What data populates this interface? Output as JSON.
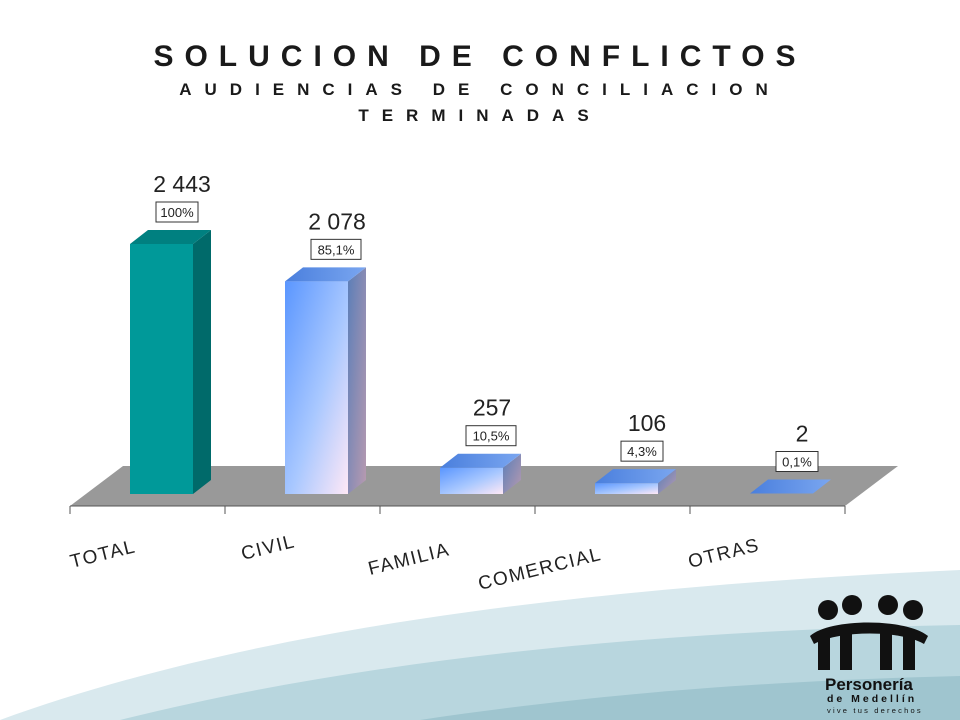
{
  "chart_data": {
    "type": "bar",
    "title": "SOLUCION DE CONFLICTOS",
    "subtitle_line1": "AUDIENCIAS DE CONCILIACION",
    "subtitle_line2": "TERMINADAS",
    "categories": [
      "TOTAL",
      "CIVIL",
      "FAMILIA",
      "COMERCIAL",
      "OTRAS"
    ],
    "values": [
      2443,
      2078,
      257,
      106,
      2
    ],
    "value_labels": [
      "2 443",
      "2 078",
      "257",
      "106",
      "2"
    ],
    "percent_labels": [
      "100%",
      "85,1%",
      "10,5%",
      "4,3%",
      "0,1%"
    ],
    "ylim": [
      0,
      2443
    ],
    "grid": false,
    "legend": "none",
    "colors": {
      "total": "#009999",
      "others": "#6699ff"
    }
  },
  "logo": {
    "name_line1": "Personería",
    "name_line2": "de Medellín",
    "tagline": "vive tus derechos"
  }
}
